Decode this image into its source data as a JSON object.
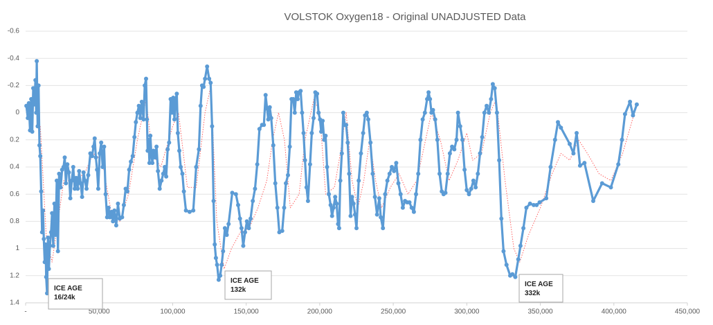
{
  "chart_data": {
    "type": "line",
    "title": "VOLSTOK Oxygen18 - Original UNADJUSTED Data",
    "xlim": [
      0,
      450000
    ],
    "xticks": [
      {
        "value": 0,
        "label": "-"
      },
      {
        "value": 50000,
        "label": "50,000"
      },
      {
        "value": 100000,
        "label": "100,000"
      },
      {
        "value": 150000,
        "label": "150,000"
      },
      {
        "value": 200000,
        "label": "200,000"
      },
      {
        "value": 250000,
        "label": "250,000"
      },
      {
        "value": 300000,
        "label": "300,000"
      },
      {
        "value": 350000,
        "label": "350,000"
      },
      {
        "value": 400000,
        "label": "400,000"
      },
      {
        "value": 450000,
        "label": "450,000"
      }
    ],
    "ylim": [
      -0.6,
      1.4
    ],
    "yticks": [
      -0.6,
      -0.4,
      -0.2,
      0,
      0.2,
      0.4,
      0.6,
      0.8,
      1,
      1.2,
      1.4
    ],
    "y_inverted": true,
    "grid": true,
    "series": [
      {
        "color": "#ff6060",
        "dash": "dotted",
        "x": [
          10000,
          14000,
          18000,
          22000,
          26000,
          32000,
          40000,
          46000,
          52000,
          58000,
          64000,
          70000,
          76000,
          82000,
          86000,
          92000,
          100000,
          104000,
          110000,
          116000,
          122000,
          126000,
          130000,
          135000,
          140000,
          146000,
          152000,
          158000,
          164000,
          168000,
          172000,
          176000,
          180000,
          186000,
          190000,
          196000,
          200000,
          204000,
          210000,
          214000,
          218000,
          222000,
          226000,
          230000,
          234000,
          238000,
          242000,
          248000,
          254000,
          260000,
          266000,
          272000,
          276000,
          282000,
          288000,
          294000,
          300000,
          304000,
          310000,
          316000,
          320000,
          326000,
          332000,
          336000,
          342000,
          350000,
          358000,
          364000,
          370000,
          376000,
          382000,
          390000,
          398000,
          406000,
          414000
        ],
        "values": [
          0.1,
          0.9,
          1.1,
          0.8,
          0.5,
          0.5,
          0.45,
          0.3,
          0.35,
          0.72,
          0.8,
          0.6,
          0.2,
          -0.1,
          0.3,
          0.4,
          0.1,
          0,
          0.55,
          0.55,
          0,
          -0.2,
          0.8,
          1.15,
          1,
          0.88,
          0.85,
          0.7,
          0.5,
          0.2,
          0,
          0.2,
          0.7,
          0.6,
          0.2,
          -0.1,
          0,
          0.6,
          0.55,
          0.3,
          0,
          0.5,
          0.7,
          0.5,
          0.2,
          0.5,
          0.7,
          0.55,
          0.45,
          0.6,
          0.5,
          0.2,
          0,
          0.2,
          0.5,
          0.35,
          0.15,
          0.35,
          0.3,
          0,
          -0.1,
          0.5,
          1,
          1.1,
          0.9,
          0.7,
          0.45,
          0.3,
          0.35,
          0.2,
          0.3,
          0.45,
          0.5,
          0.3,
          0
        ]
      },
      {
        "color": "#5b9bd5",
        "marker": "circle",
        "x": [
          500,
          1500,
          2200,
          3000,
          3800,
          4500,
          5200,
          6000,
          6700,
          7200,
          7600,
          8200,
          8800,
          9400,
          10000,
          10600,
          11200,
          11800,
          12400,
          13000,
          13600,
          14000,
          14600,
          15200,
          15800,
          16500,
          17300,
          18000,
          18800,
          19600,
          20400,
          21200,
          22000,
          22800,
          23800,
          24800,
          25800,
          26600,
          27400,
          28400,
          29400,
          30400,
          31400,
          32400,
          33400,
          34400,
          35400,
          36400,
          37400,
          38400,
          39400,
          40400,
          41400,
          42600,
          44000,
          45200,
          46200,
          47000,
          47800,
          48600,
          49400,
          50400,
          51400,
          52400,
          53400,
          54400,
          55400,
          56400,
          57400,
          58400,
          59400,
          60400,
          61600,
          62800,
          64000,
          65600,
          66800,
          68000,
          69200,
          70400,
          71600,
          72800,
          74000,
          75000,
          76000,
          77000,
          78000,
          79000,
          80200,
          81000,
          81900,
          82500,
          83000,
          83600,
          84200,
          84800,
          85500,
          86200,
          87000,
          88000,
          89000,
          90000,
          91200,
          92400,
          93600,
          94600,
          95600,
          96600,
          97600,
          98600,
          99600,
          100400,
          101200,
          102000,
          102800,
          103500,
          104500,
          105500,
          106600,
          107600,
          109000,
          111500,
          114000,
          116000,
          117800,
          119000,
          120000,
          121000,
          122000,
          123400,
          124800,
          125800,
          126800,
          127800,
          128600,
          129400,
          130200,
          131300,
          132300,
          133300,
          134300,
          135500,
          136800,
          138000,
          140500,
          143000,
          144500,
          145800,
          146800,
          148000,
          149200,
          150500,
          151800,
          153000,
          154500,
          156000,
          157500,
          159000,
          160800,
          162000,
          163200,
          164200,
          165000,
          166000,
          167000,
          168400,
          169800,
          171200,
          172500,
          174500,
          175800,
          177000,
          178400,
          179600,
          180800,
          182000,
          183000,
          184000,
          185000,
          186000,
          187000,
          188000,
          189000,
          190000,
          191000,
          192000,
          193400,
          194600,
          195800,
          197000,
          198200,
          199200,
          200200,
          201000,
          202000,
          203000,
          204000,
          205000,
          206200,
          207400,
          208400,
          209400,
          210500,
          211500,
          212500,
          213200,
          214000,
          215000,
          216000,
          217000,
          218000,
          219000,
          220000,
          221000,
          222000,
          223000,
          224000,
          225000,
          226500,
          228000,
          229500,
          230800,
          232000,
          233000,
          234500,
          236000,
          237500,
          239000,
          240500,
          241500,
          243000,
          244500,
          246000,
          247500,
          249000,
          250500,
          252000,
          253500,
          255000,
          256500,
          258000,
          259500,
          261000,
          262500,
          264000,
          265500,
          267000,
          268500,
          270000,
          271500,
          273000,
          274000,
          275000,
          276000,
          277000,
          278500,
          280000,
          281500,
          283000,
          284200,
          285500,
          287000,
          288500,
          290000,
          291500,
          293000,
          294000,
          295500,
          297000,
          298500,
          300000,
          301500,
          303000,
          304500,
          306000,
          307500,
          309000,
          310500,
          312000,
          313500,
          315000,
          316500,
          317700,
          319000,
          320500,
          322000,
          323500,
          325000,
          327000,
          329500,
          331000,
          333000,
          335000,
          336500,
          338500,
          340500,
          343000,
          345500,
          347500,
          349500,
          354000,
          357000,
          360000,
          362000,
          364000,
          370000,
          372500,
          374700,
          377000,
          380000,
          386000,
          392000,
          398000,
          403000,
          405500,
          407600,
          411000,
          413000,
          415600
        ],
        "values": [
          -0.05,
          0.04,
          -0.07,
          0.13,
          -0.1,
          0.14,
          -0.18,
          -0.06,
          -0.24,
          0,
          -0.38,
          0.1,
          -0.2,
          0.24,
          0.32,
          0.58,
          0.88,
          0.72,
          0.93,
          1.1,
          0.97,
          1.21,
          1.33,
          0.92,
          1.15,
          0.98,
          0.88,
          0.74,
          0.98,
          0.67,
          0.9,
          0.5,
          1.02,
          0.45,
          0.55,
          0.42,
          0.4,
          0.33,
          0.52,
          0.38,
          0.44,
          0.63,
          0.5,
          0.4,
          0.56,
          0.48,
          0.56,
          0.43,
          0.52,
          0.62,
          0.44,
          0.5,
          0.56,
          0.46,
          0.3,
          0.32,
          0.25,
          0.19,
          0.33,
          0.42,
          0.56,
          0.3,
          0.22,
          0.4,
          0.25,
          0.6,
          0.77,
          0.7,
          0.77,
          0.73,
          0.8,
          0.72,
          0.83,
          0.67,
          0.78,
          0.77,
          0.68,
          0.56,
          0.58,
          0.42,
          0.36,
          0.32,
          0.18,
          0.07,
          0,
          -0.05,
          0.04,
          -0.08,
          0.05,
          -0.2,
          -0.25,
          0.05,
          0.28,
          0.2,
          0.37,
          0.17,
          0.3,
          0.37,
          0.28,
          0.33,
          0.25,
          0.43,
          0.56,
          0.5,
          0.45,
          0.4,
          0.47,
          0.27,
          0.22,
          -0.1,
          0,
          -0.11,
          0.05,
          -0.1,
          -0.14,
          0.15,
          0.28,
          0.4,
          0.45,
          0.58,
          0.72,
          0.73,
          0.72,
          0.4,
          0.27,
          -0.05,
          -0.2,
          -0.19,
          -0.25,
          -0.34,
          -0.25,
          -0.22,
          0.1,
          0.65,
          0.97,
          1.07,
          1.12,
          1.23,
          1.2,
          1.12,
          1.02,
          0.85,
          0.9,
          0.82,
          0.59,
          0.6,
          0.68,
          0.78,
          0.85,
          0.98,
          0.88,
          0.8,
          0.85,
          0.78,
          0.65,
          0.56,
          0.38,
          0.12,
          0.09,
          0.09,
          -0.13,
          -0.03,
          0.05,
          -0.04,
          0.04,
          0.24,
          0.52,
          0.7,
          0.88,
          0.87,
          0.7,
          0.52,
          0.46,
          0.25,
          -0.1,
          -0.1,
          0,
          -0.15,
          -0.1,
          -0.15,
          -0.16,
          0,
          0.15,
          0.35,
          0.55,
          0.65,
          0.38,
          0.15,
          0.04,
          -0.15,
          -0.14,
          0,
          0.05,
          0.14,
          0.06,
          0.2,
          0.17,
          0.4,
          0.6,
          0.68,
          0.76,
          0.7,
          0.62,
          0.67,
          0.82,
          0.85,
          0.5,
          0.3,
          0,
          0.09,
          0.09,
          0.22,
          0.45,
          0.76,
          0.62,
          0.67,
          0.75,
          0.85,
          0.5,
          0.3,
          0.15,
          0.02,
          0,
          0.05,
          0.22,
          0.45,
          0.62,
          0.75,
          0.63,
          0.77,
          0.85,
          0.6,
          0.5,
          0.45,
          0.4,
          0.43,
          0.37,
          0.52,
          0.6,
          0.7,
          0.65,
          0.66,
          0.66,
          0.7,
          0.73,
          0.6,
          0.45,
          0.2,
          0.05,
          0,
          -0.1,
          -0.15,
          -0.1,
          0,
          -0.02,
          0.05,
          0.2,
          0.45,
          0.58,
          0.6,
          0.59,
          0.45,
          0.3,
          0.25,
          0.27,
          0.2,
          0,
          0.1,
          0.2,
          0.42,
          0.57,
          0.6,
          0.56,
          0.5,
          0.55,
          0.45,
          0.3,
          0.18,
          0,
          -0.05,
          0,
          -0.1,
          -0.21,
          -0.18,
          0,
          0.35,
          0.78,
          1.02,
          1.12,
          1.2,
          1.19,
          1.21,
          1.08,
          0.98,
          0.85,
          0.7,
          0.67,
          0.68,
          0.68,
          0.66,
          0.63,
          0.4,
          0.2,
          0.07,
          0.11,
          0.23,
          0.3,
          0.15,
          0.39,
          0.37,
          0.65,
          0.52,
          0.55,
          0.38,
          0.2,
          0.01,
          -0.08,
          0.02,
          -0.06
        ]
      }
    ],
    "annotations": [
      {
        "lines": [
          "ICE AGE",
          "16/24k"
        ]
      },
      {
        "lines": [
          "ICE AGE",
          "132k"
        ]
      },
      {
        "lines": [
          "ICE AGE",
          "332k"
        ]
      }
    ]
  }
}
